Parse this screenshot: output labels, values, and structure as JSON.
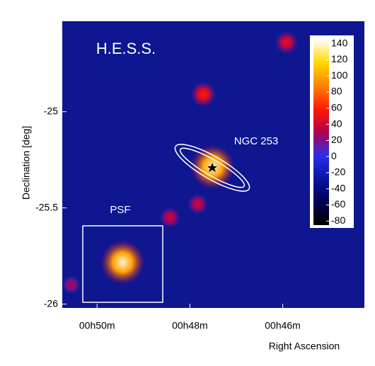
{
  "chart_data": {
    "type": "heatmap",
    "title": "H.E.S.S.",
    "xlabel": "Right Ascension",
    "ylabel": "Declination [deg]",
    "xlim": [
      50.75,
      44.24
    ],
    "ylim": [
      -26.02,
      -24.53
    ],
    "xticks": [
      {
        "value": 50,
        "label": "00h50m"
      },
      {
        "value": 48,
        "label": "00h48m"
      },
      {
        "value": 46,
        "label": "00h46m"
      }
    ],
    "yticks": [
      -25,
      -25.5,
      -26
    ],
    "x": [
      47.51,
      49.45,
      47.71,
      45.92,
      47.83,
      48.43,
      50.56
    ],
    "y": [
      -25.287,
      -25.783,
      -24.91,
      -24.64,
      -25.48,
      -25.55,
      -25.9
    ],
    "values": [
      140,
      140,
      60,
      50,
      40,
      40,
      30
    ],
    "colorbar": {
      "clim": [
        -85,
        145
      ],
      "ticks": [
        140,
        120,
        100,
        80,
        60,
        40,
        20,
        0,
        -20,
        -40,
        -60,
        -80
      ],
      "colors": [
        "#000000",
        "#000050",
        "#0a14a0",
        "#2a2ee8",
        "#b00050",
        "#ff1a00",
        "#ff8000",
        "#ffd800",
        "#ffffff"
      ]
    },
    "annotations": [
      "NGC 253",
      "PSF"
    ]
  }
}
